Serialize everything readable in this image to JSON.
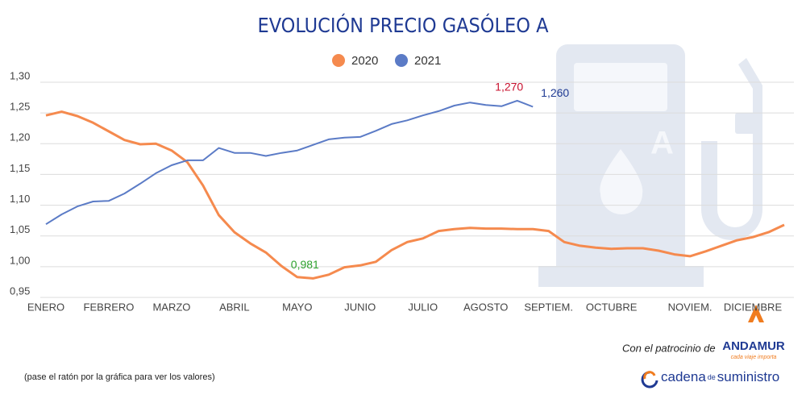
{
  "chart_data": {
    "type": "line",
    "title": "EVOLUCIÓN PRECIO GASÓLEO A",
    "categories": [
      "ENERO",
      null,
      null,
      null,
      "FEBRERO",
      null,
      null,
      null,
      "MARZO",
      null,
      null,
      null,
      "ABRIL",
      null,
      null,
      null,
      "MAYO",
      null,
      null,
      null,
      "JUNIO",
      null,
      null,
      null,
      "JULIO",
      null,
      null,
      null,
      "AGOSTO",
      null,
      null,
      null,
      "SEPTIEM.",
      null,
      null,
      null,
      "OCTUBRE",
      null,
      null,
      null,
      null,
      "NOVIEM.",
      null,
      null,
      null,
      "DICIEMBRE",
      null,
      null
    ],
    "series": [
      {
        "name": "2020",
        "color": "#f58a4e",
        "values": [
          1.246,
          1.252,
          1.245,
          1.234,
          1.22,
          1.206,
          1.199,
          1.2,
          1.189,
          1.17,
          1.132,
          1.084,
          1.056,
          1.038,
          1.023,
          1.001,
          0.983,
          0.981,
          0.987,
          0.999,
          1.002,
          1.008,
          1.027,
          1.04,
          1.046,
          1.058,
          1.061,
          1.063,
          1.062,
          1.062,
          1.061,
          1.061,
          1.058,
          1.04,
          1.034,
          1.031,
          1.029,
          1.03,
          1.03,
          1.026,
          1.02,
          1.017,
          1.025,
          1.034,
          1.043,
          1.048,
          1.056,
          1.068
        ],
        "value_labels": [
          null,
          null,
          null,
          null,
          null,
          null,
          null,
          null,
          null,
          null,
          null,
          null,
          null,
          null,
          null,
          null,
          null,
          "0,981",
          null,
          null,
          null,
          null,
          null,
          null,
          null,
          null,
          null,
          null,
          null,
          null,
          null,
          null,
          null,
          null,
          null,
          null,
          null,
          null,
          null,
          null,
          null,
          null,
          null,
          null,
          null,
          null,
          null,
          null
        ]
      },
      {
        "name": "2021",
        "color": "#5b7bc6",
        "values": [
          1.069,
          1.085,
          1.098,
          1.106,
          1.107,
          1.119,
          1.135,
          1.152,
          1.165,
          1.173,
          1.173,
          1.193,
          1.185,
          1.185,
          1.18,
          1.185,
          1.189,
          1.198,
          1.207,
          1.21,
          1.211,
          1.221,
          1.232,
          1.238,
          1.246,
          1.253,
          1.262,
          1.267,
          1.263,
          1.261,
          1.27,
          1.26,
          null,
          null,
          null,
          null,
          null,
          null,
          null,
          null,
          null,
          null,
          null,
          null,
          null,
          null,
          null,
          null
        ],
        "value_labels": [
          null,
          null,
          null,
          null,
          null,
          null,
          null,
          null,
          null,
          null,
          null,
          null,
          null,
          null,
          null,
          null,
          null,
          null,
          null,
          null,
          null,
          null,
          null,
          null,
          null,
          null,
          null,
          null,
          null,
          null,
          "1,270",
          "1,260",
          null,
          null,
          null,
          null,
          null,
          null,
          null,
          null,
          null,
          null,
          null,
          null,
          null,
          null,
          null,
          null
        ]
      }
    ],
    "ylim": [
      0.95,
      1.3
    ],
    "yticks": [
      {
        "value": 0.95,
        "label": "0,95"
      },
      {
        "value": 1.0,
        "label": "1,00"
      },
      {
        "value": 1.05,
        "label": "1,05"
      },
      {
        "value": 1.1,
        "label": "1,10"
      },
      {
        "value": 1.15,
        "label": "1,15"
      },
      {
        "value": 1.2,
        "label": "1,20"
      },
      {
        "value": 1.25,
        "label": "1,25"
      },
      {
        "value": 1.3,
        "label": "1,30"
      }
    ],
    "grid": true,
    "legend": "top"
  },
  "footer": {
    "sponsor": "Con el patrocinio de",
    "sponsor_name": "ANDAMUR",
    "sponsor_tagline": "cada viaje importa",
    "note": "(pase el ratón por la gráfica para ver los valores)",
    "brand_1": "cadena",
    "brand_2": "de",
    "brand_3": "suministro"
  }
}
